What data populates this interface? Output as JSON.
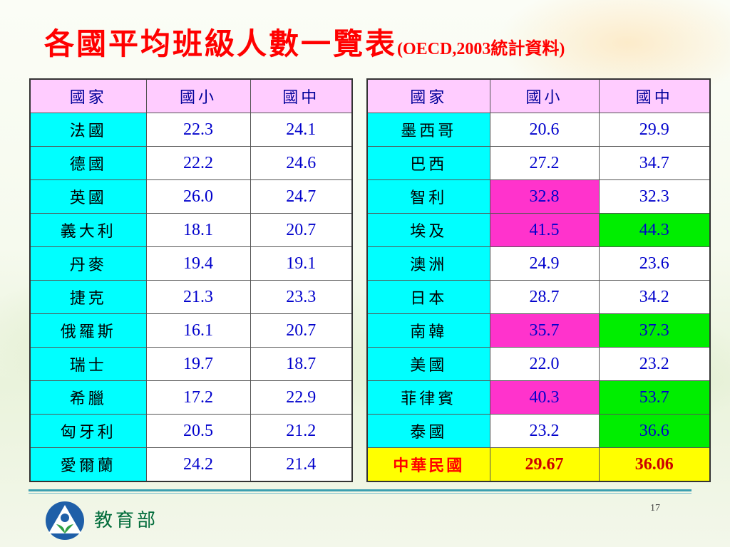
{
  "title": {
    "main": "各國平均班級人數一覽表",
    "sub": "(OECD,2003統計資料)"
  },
  "table_left": {
    "headers": [
      "國家",
      "國小",
      "國中"
    ],
    "rows": [
      {
        "country": "法國",
        "elementary": "22.3",
        "junior": "24.1"
      },
      {
        "country": "德國",
        "elementary": "22.2",
        "junior": "24.6"
      },
      {
        "country": "英國",
        "elementary": "26.0",
        "junior": "24.7"
      },
      {
        "country": "義大利",
        "elementary": "18.1",
        "junior": "20.7"
      },
      {
        "country": "丹麥",
        "elementary": "19.4",
        "junior": "19.1"
      },
      {
        "country": "捷克",
        "elementary": "21.3",
        "junior": "23.3"
      },
      {
        "country": "俄羅斯",
        "elementary": "16.1",
        "junior": "20.7"
      },
      {
        "country": "瑞士",
        "elementary": "19.7",
        "junior": "18.7"
      },
      {
        "country": "希臘",
        "elementary": "17.2",
        "junior": "22.9"
      },
      {
        "country": "匈牙利",
        "elementary": "20.5",
        "junior": "21.2"
      },
      {
        "country": "愛爾蘭",
        "elementary": "24.2",
        "junior": "21.4"
      }
    ]
  },
  "table_right": {
    "headers": [
      "國家",
      "國小",
      "國中"
    ],
    "rows": [
      {
        "country": "墨西哥",
        "elementary": "20.6",
        "junior": "29.9"
      },
      {
        "country": "巴西",
        "elementary": "27.2",
        "junior": "34.7"
      },
      {
        "country": "智利",
        "elementary": "32.8",
        "junior": "32.3"
      },
      {
        "country": "埃及",
        "elementary": "41.5",
        "junior": "44.3"
      },
      {
        "country": "澳洲",
        "elementary": "24.9",
        "junior": "23.6"
      },
      {
        "country": "日本",
        "elementary": "28.7",
        "junior": "34.2"
      },
      {
        "country": "南韓",
        "elementary": "35.7",
        "junior": "37.3"
      },
      {
        "country": "美國",
        "elementary": "22.0",
        "junior": "23.2"
      },
      {
        "country": "菲律賓",
        "elementary": "40.3",
        "junior": "53.7"
      },
      {
        "country": "泰國",
        "elementary": "23.2",
        "junior": "36.6"
      },
      {
        "country": "中華民國",
        "elementary": "29.67",
        "junior": "36.06"
      }
    ]
  },
  "colors": {
    "header_bg": "#ffccff",
    "country_bg": "#00ffff",
    "highlight_pink": "#ff33cc",
    "highlight_green": "#00ee00",
    "highlight_yellow": "#ffff00",
    "title_red": "#ff0000"
  },
  "footer": {
    "logo_icon": "moe-logo-icon",
    "org": "教育部",
    "page_number": "17"
  }
}
